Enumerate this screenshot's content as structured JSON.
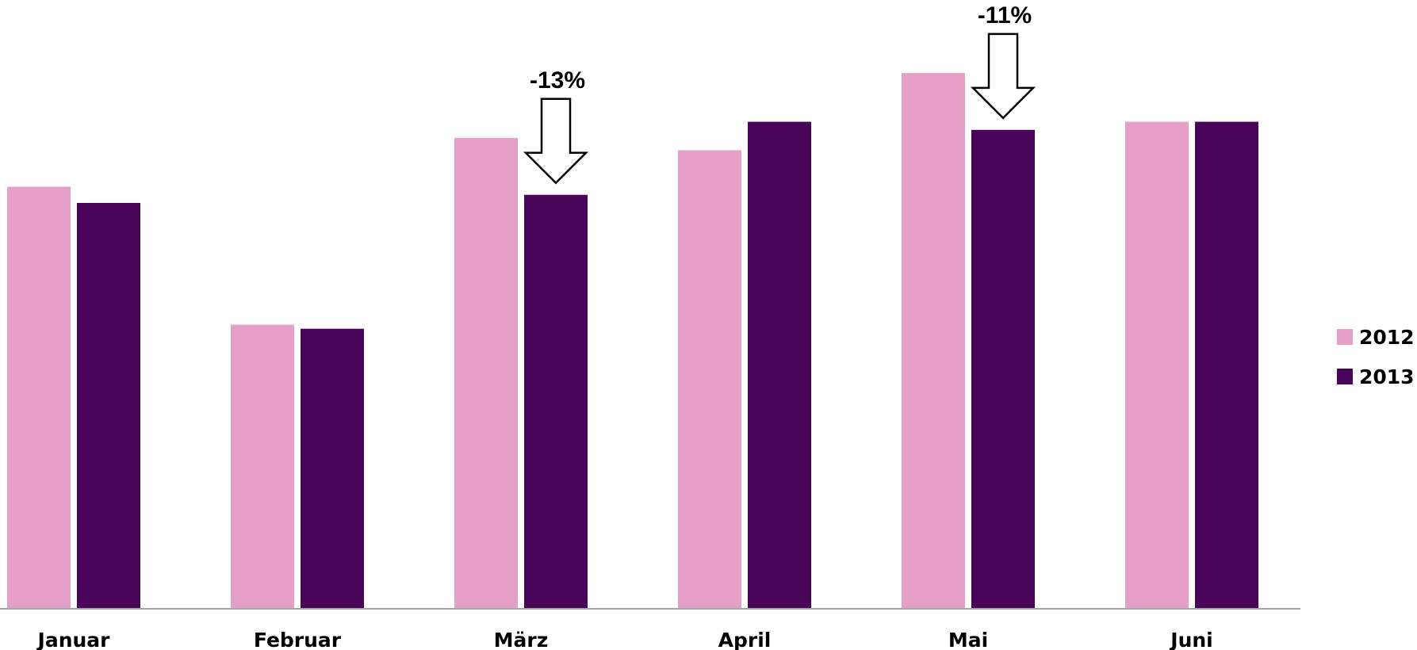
{
  "chart_data": {
    "type": "bar",
    "categories": [
      "Januar",
      "Februar",
      "März",
      "April",
      "Mai",
      "Juni"
    ],
    "series": [
      {
        "name": "2012",
        "color": "#E6A0C8",
        "values": [
          52,
          35,
          58,
          56.5,
          66,
          60
        ]
      },
      {
        "name": "2013",
        "color": "#48055A",
        "values": [
          50,
          34.5,
          51,
          60,
          59,
          60
        ]
      }
    ],
    "ylim": [
      0,
      75
    ],
    "grid": false,
    "legend_position": "right",
    "annotations": [
      {
        "category": "März",
        "label": "-13%",
        "icon": "down-arrow-icon"
      },
      {
        "category": "Mai",
        "label": "-11%",
        "icon": "down-arrow-icon"
      }
    ],
    "axis_color": "#A6A6A6"
  }
}
